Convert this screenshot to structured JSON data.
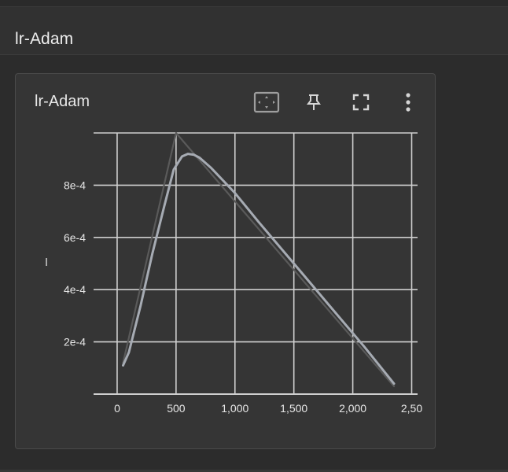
{
  "header": {
    "title": "lr-Adam"
  },
  "card": {
    "title": "lr-Adam",
    "buttons": {
      "fit_domain": "fit-to-data-icon",
      "pin": "pin-icon",
      "fullscreen": "fullscreen-icon",
      "more": "more-vert-icon"
    }
  },
  "chart_data": {
    "type": "line",
    "title": "",
    "xlabel": "",
    "ylabel": "l",
    "xlim": [
      -200,
      2550
    ],
    "ylim": [
      0,
      0.001
    ],
    "x_ticks": [
      "0",
      "500",
      "1,000",
      "1,500",
      "2,000",
      "2,50"
    ],
    "y_ticks": [
      "2e-4",
      "4e-4",
      "6e-4",
      "8e-4"
    ],
    "grid": true,
    "series": [
      {
        "role": "raw",
        "color": "#5a5a5a",
        "x": [
          50,
          500,
          2350
        ],
        "y": [
          0.00012,
          0.001,
          3e-05
        ]
      },
      {
        "role": "smoothed",
        "color": "#a6abb3",
        "x": [
          50,
          100,
          200,
          300,
          400,
          480,
          550,
          600,
          650,
          700,
          800,
          1000,
          1200,
          1500,
          1800,
          2100,
          2350
        ],
        "y": [
          0.00011,
          0.00016,
          0.00034,
          0.00054,
          0.00072,
          0.00086,
          0.00091,
          0.00092,
          0.000917,
          0.000905,
          0.000865,
          0.00077,
          0.00066,
          0.0005,
          0.00034,
          0.00018,
          4e-05
        ]
      }
    ]
  }
}
